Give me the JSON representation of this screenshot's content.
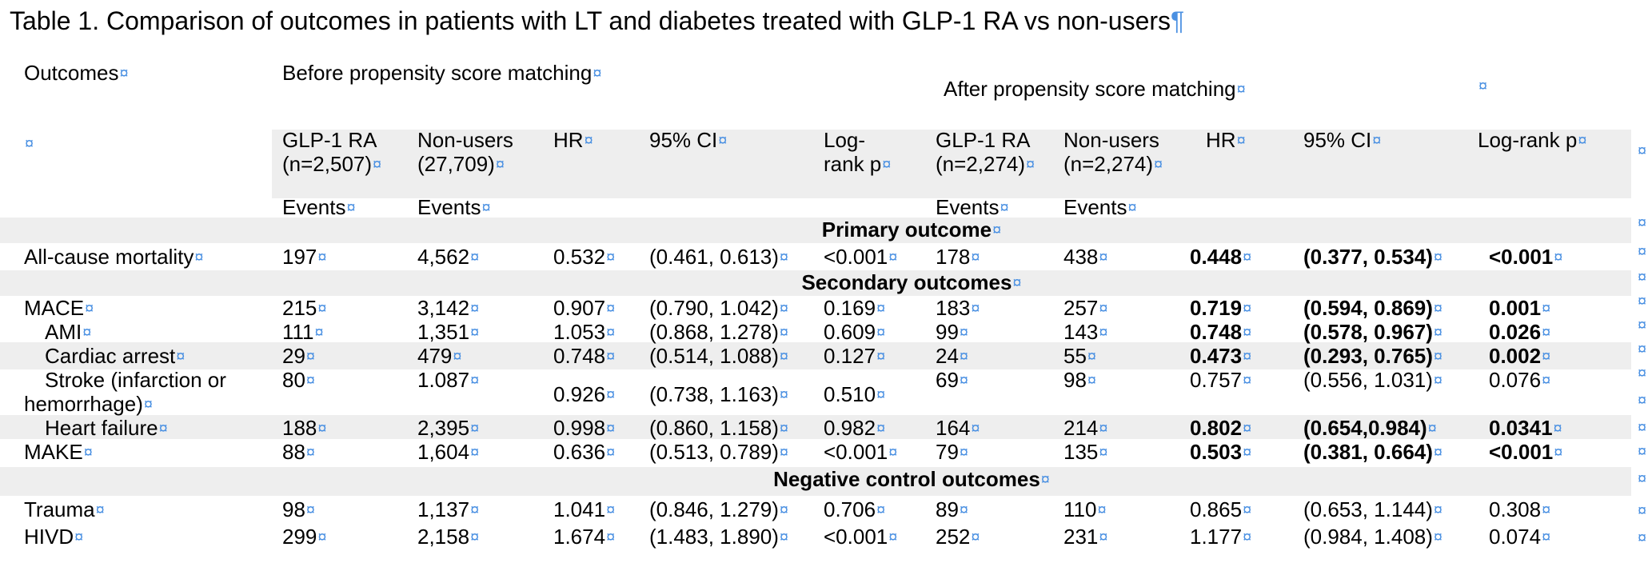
{
  "caption": "Table 1. Comparison of outcomes in patients with LT and diabetes treated with GLP-1 RA vs non-users",
  "header": {
    "outcomes": "Outcomes",
    "before": "Before propensity score matching",
    "after": "After propensity score matching",
    "before_cols": {
      "glp": "GLP-1 RA (n=2,507)",
      "non": "Non-users (27,709)",
      "hr": "HR",
      "ci": "95% CI",
      "lr": "Log-rank p"
    },
    "after_cols": {
      "glp": "GLP-1 RA (n=2,274)",
      "non": "Non-users (n=2,274)",
      "hr": "HR",
      "ci": "95% CI",
      "lr": "Log-rank p"
    },
    "events": "Events"
  },
  "sections": {
    "primary": "Primary outcome",
    "secondary": "Secondary outcomes",
    "negative": "Negative control outcomes"
  },
  "rows": [
    {
      "name": "All-cause mortality",
      "b_glp": "197",
      "b_non": "4,562",
      "b_hr": "0.532",
      "b_ci": "(0.461, 0.613)",
      "b_lr": "<0.001",
      "a_glp": "178",
      "a_non": "438",
      "a_hr": "0.448",
      "a_ci": "(0.377, 0.534)",
      "a_lr": "<0.001"
    },
    {
      "name": "MACE",
      "b_glp": "215",
      "b_non": "3,142",
      "b_hr": "0.907",
      "b_ci": "(0.790, 1.042)",
      "b_lr": "0.169",
      "a_glp": "183",
      "a_non": "257",
      "a_hr": "0.719",
      "a_ci": "(0.594, 0.869)",
      "a_lr": "0.001"
    },
    {
      "name": "AMI",
      "b_glp": "111",
      "b_non": "1,351",
      "b_hr": "1.053",
      "b_ci": "(0.868, 1.278)",
      "b_lr": "0.609",
      "a_glp": "99",
      "a_non": "143",
      "a_hr": "0.748",
      "a_ci": "(0.578, 0.967)",
      "a_lr": "0.026"
    },
    {
      "name": "Cardiac arrest",
      "b_glp": "29",
      "b_non": "479",
      "b_hr": "0.748",
      "b_ci": "(0.514, 1.088)",
      "b_lr": "0.127",
      "a_glp": "24",
      "a_non": "55",
      "a_hr": "0.473",
      "a_ci": "(0.293, 0.765)",
      "a_lr": "0.002"
    },
    {
      "name": "Stroke (infarction or hemorrhage)",
      "b_glp": "80",
      "b_non": "1.087",
      "b_hr": "0.926",
      "b_ci": "(0.738, 1.163)",
      "b_lr": "0.510",
      "a_glp": "69",
      "a_non": "98",
      "a_hr": "0.757",
      "a_ci": "(0.556, 1.031)",
      "a_lr": "0.076"
    },
    {
      "name": "Heart failure",
      "b_glp": "188",
      "b_non": "2,395",
      "b_hr": "0.998",
      "b_ci": "(0.860, 1.158)",
      "b_lr": "0.982",
      "a_glp": "164",
      "a_non": "214",
      "a_hr": "0.802",
      "a_ci": "(0.654,0.984)",
      "a_lr": "0.0341"
    },
    {
      "name": "MAKE",
      "b_glp": "88",
      "b_non": "1,604",
      "b_hr": "0.636",
      "b_ci": "(0.513, 0.789)",
      "b_lr": "<0.001",
      "a_glp": "79",
      "a_non": "135",
      "a_hr": "0.503",
      "a_ci": "(0.381, 0.664)",
      "a_lr": "<0.001"
    },
    {
      "name": "Trauma",
      "b_glp": "98",
      "b_non": "1,137",
      "b_hr": "1.041",
      "b_ci": "(0.846, 1.279)",
      "b_lr": "0.706",
      "a_glp": "89",
      "a_non": "110",
      "a_hr": "0.865",
      "a_ci": "(0.653, 1.144)",
      "a_lr": "0.308"
    },
    {
      "name": "HIVD",
      "b_glp": "299",
      "b_non": "2,158",
      "b_hr": "1.674",
      "b_ci": "(1.483, 1.890)",
      "b_lr": "<0.001",
      "a_glp": "252",
      "a_non": "231",
      "a_hr": "1.177",
      "a_ci": "(0.984, 1.408)",
      "a_lr": "0.074"
    }
  ],
  "colors": {
    "format_marks": "#4a90e2",
    "row_shading": "#eeeeee"
  }
}
